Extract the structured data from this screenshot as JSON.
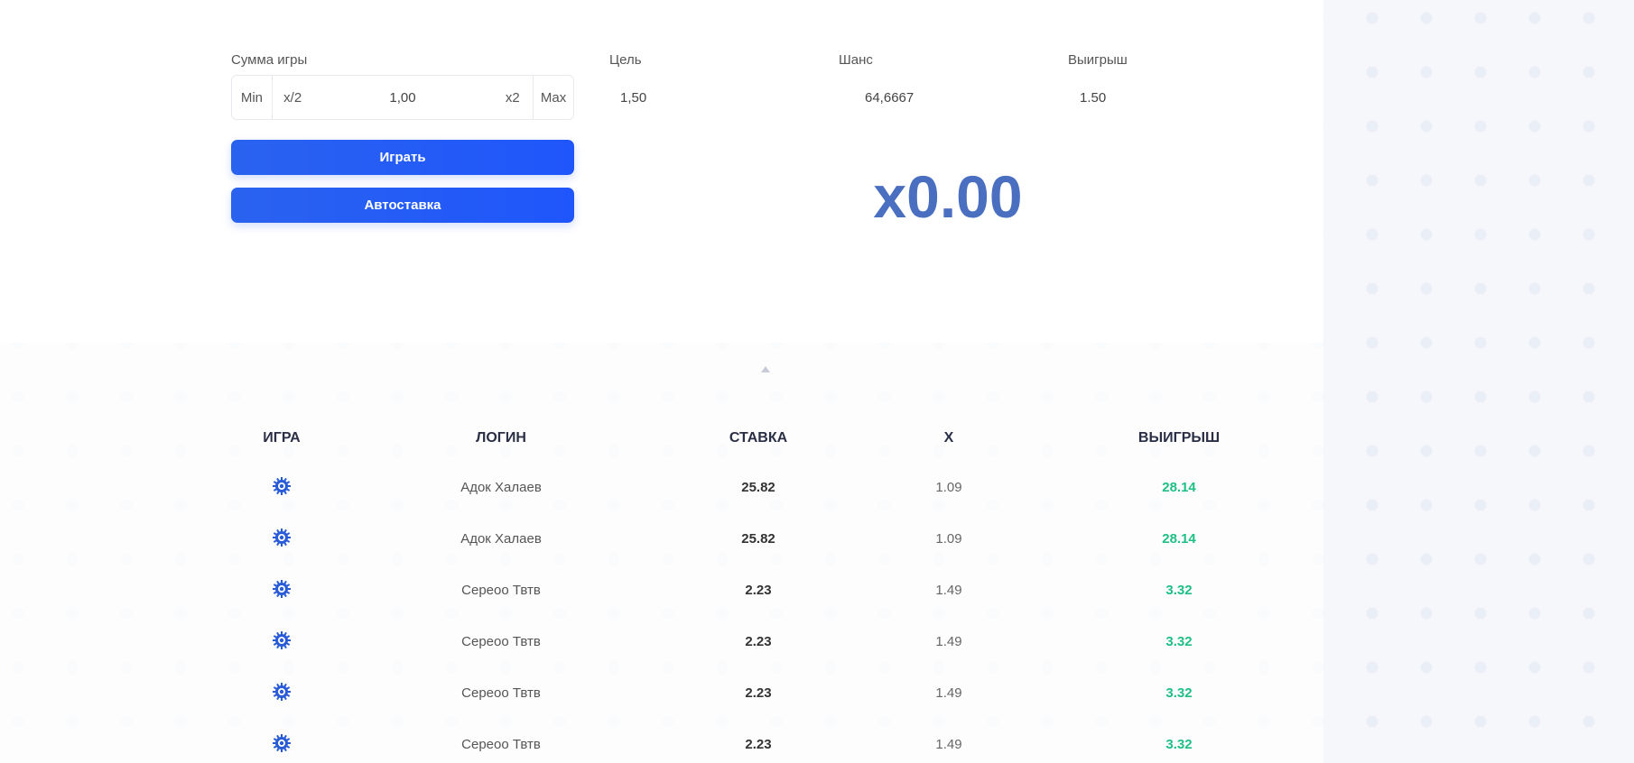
{
  "bet": {
    "label": "Сумма игры",
    "min": "Min",
    "half": "x/2",
    "value": "1,00",
    "double": "x2",
    "max": "Max"
  },
  "target": {
    "label": "Цель",
    "value": "1,50"
  },
  "chance": {
    "label": "Шанс",
    "value": "64,6667"
  },
  "payout": {
    "label": "Выигрыш",
    "value": "1.50"
  },
  "play_button": "Играть",
  "auto_button": "Автоставка",
  "multiplier": "x0.00",
  "colors": {
    "accent": "#1f56fb",
    "multiplier": "#4a6fc0",
    "win": "#1fbf86"
  },
  "table": {
    "headers": [
      "ИГРА",
      "ЛОГИН",
      "СТАВКА",
      "X",
      "ВЫИГРЫШ"
    ],
    "rows": [
      {
        "game_icon": "gear-icon",
        "login": "Адок Халаев",
        "stake": "25.82",
        "x": "1.09",
        "win": "28.14"
      },
      {
        "game_icon": "gear-icon",
        "login": "Адок Халаев",
        "stake": "25.82",
        "x": "1.09",
        "win": "28.14"
      },
      {
        "game_icon": "gear-icon",
        "login": "Сереоо Твтв",
        "stake": "2.23",
        "x": "1.49",
        "win": "3.32"
      },
      {
        "game_icon": "gear-icon",
        "login": "Сереоо Твтв",
        "stake": "2.23",
        "x": "1.49",
        "win": "3.32"
      },
      {
        "game_icon": "gear-icon",
        "login": "Сереоо Твтв",
        "stake": "2.23",
        "x": "1.49",
        "win": "3.32"
      },
      {
        "game_icon": "gear-icon",
        "login": "Сереоо Твтв",
        "stake": "2.23",
        "x": "1.49",
        "win": "3.32"
      }
    ]
  }
}
